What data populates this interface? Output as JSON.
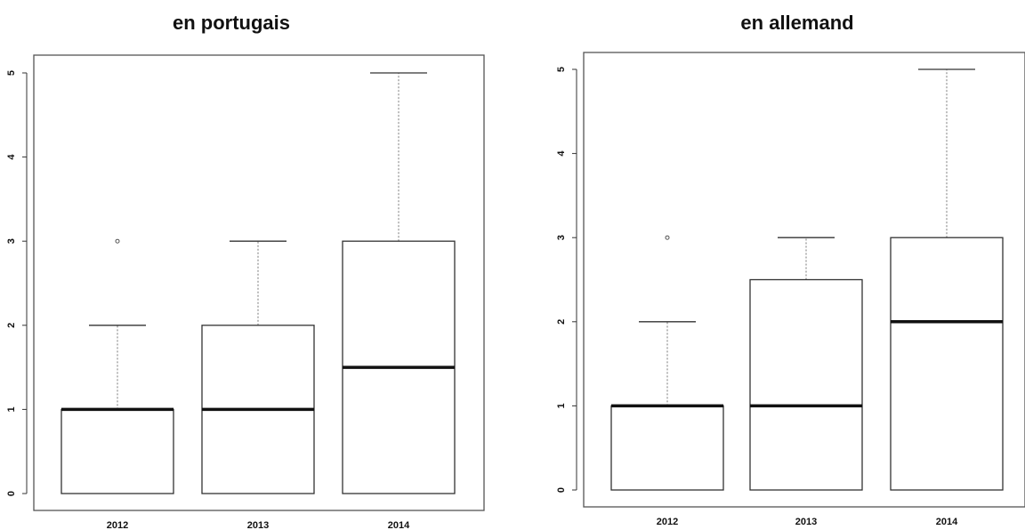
{
  "chart_data": [
    {
      "type": "boxplot",
      "title": "en portugais",
      "categories": [
        "2012",
        "2013",
        "2014"
      ],
      "y_ticks": [
        "0",
        "1",
        "2",
        "3",
        "4",
        "5"
      ],
      "ylim": [
        0,
        5
      ],
      "boxes": [
        {
          "category": "2012",
          "min": 0,
          "q1": 0,
          "median": 1,
          "q3": 1,
          "max": 2,
          "outliers": [
            3
          ]
        },
        {
          "category": "2013",
          "min": 0,
          "q1": 0,
          "median": 1,
          "q3": 2,
          "max": 3,
          "outliers": []
        },
        {
          "category": "2014",
          "min": 0,
          "q1": 0,
          "median": 1.5,
          "q3": 3,
          "max": 5,
          "outliers": []
        }
      ]
    },
    {
      "type": "boxplot",
      "title": "en allemand",
      "categories": [
        "2012",
        "2013",
        "2014"
      ],
      "y_ticks": [
        "0",
        "1",
        "2",
        "3",
        "4",
        "5"
      ],
      "ylim": [
        0,
        5
      ],
      "boxes": [
        {
          "category": "2012",
          "min": 0,
          "q1": 0,
          "median": 1,
          "q3": 1,
          "max": 2,
          "outliers": [
            3
          ]
        },
        {
          "category": "2013",
          "min": 0,
          "q1": 0,
          "median": 1,
          "q3": 2.5,
          "max": 3,
          "outliers": []
        },
        {
          "category": "2014",
          "min": 0,
          "q1": 0,
          "median": 2,
          "q3": 3,
          "max": 5,
          "outliers": []
        }
      ]
    }
  ]
}
